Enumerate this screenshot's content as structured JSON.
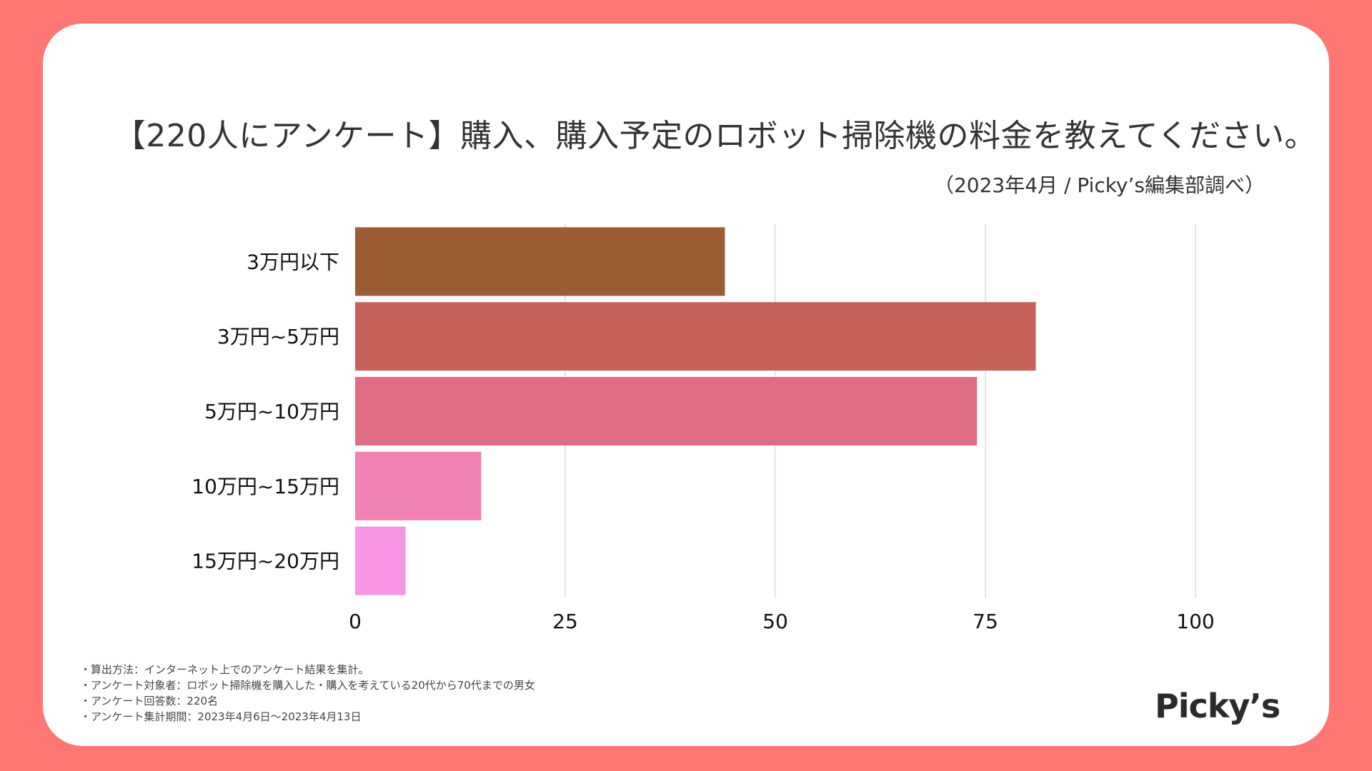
{
  "title": "【220人にアンケート】購入、購入予定のロボット掃除機の料金を教えてください。",
  "subtitle": "（2023年4月 / Picky’s編集部調べ）",
  "chart_data": {
    "type": "bar",
    "orientation": "horizontal",
    "categories": [
      "3万円以下",
      "3万円~5万円",
      "5万円~10万円",
      "10万円~15万円",
      "15万円~20万円"
    ],
    "values": [
      44,
      81,
      74,
      15,
      6
    ],
    "colors": [
      "#9c5c34",
      "#c5635a",
      "#e06c84",
      "#f282b4",
      "#f795e5"
    ],
    "xlim": [
      0,
      110
    ],
    "xticks": [
      0,
      25,
      50,
      75,
      100
    ],
    "grid": true,
    "xlabel": "",
    "ylabel": ""
  },
  "footnotes": [
    "・算出方法：インターネット上でのアンケート結果を集計。",
    "・アンケート対象者：ロボット掃除機を購入した・購入を考えている20代から70代までの男女",
    "・アンケート回答数：220名",
    "・アンケート集計期間：2023年4月6日〜2023年4月13日"
  ],
  "logo_text": "Picky’s",
  "colors": {
    "background": "#ff7673",
    "card": "#ffffff",
    "text": "#333333",
    "grid": "#dddddd"
  }
}
